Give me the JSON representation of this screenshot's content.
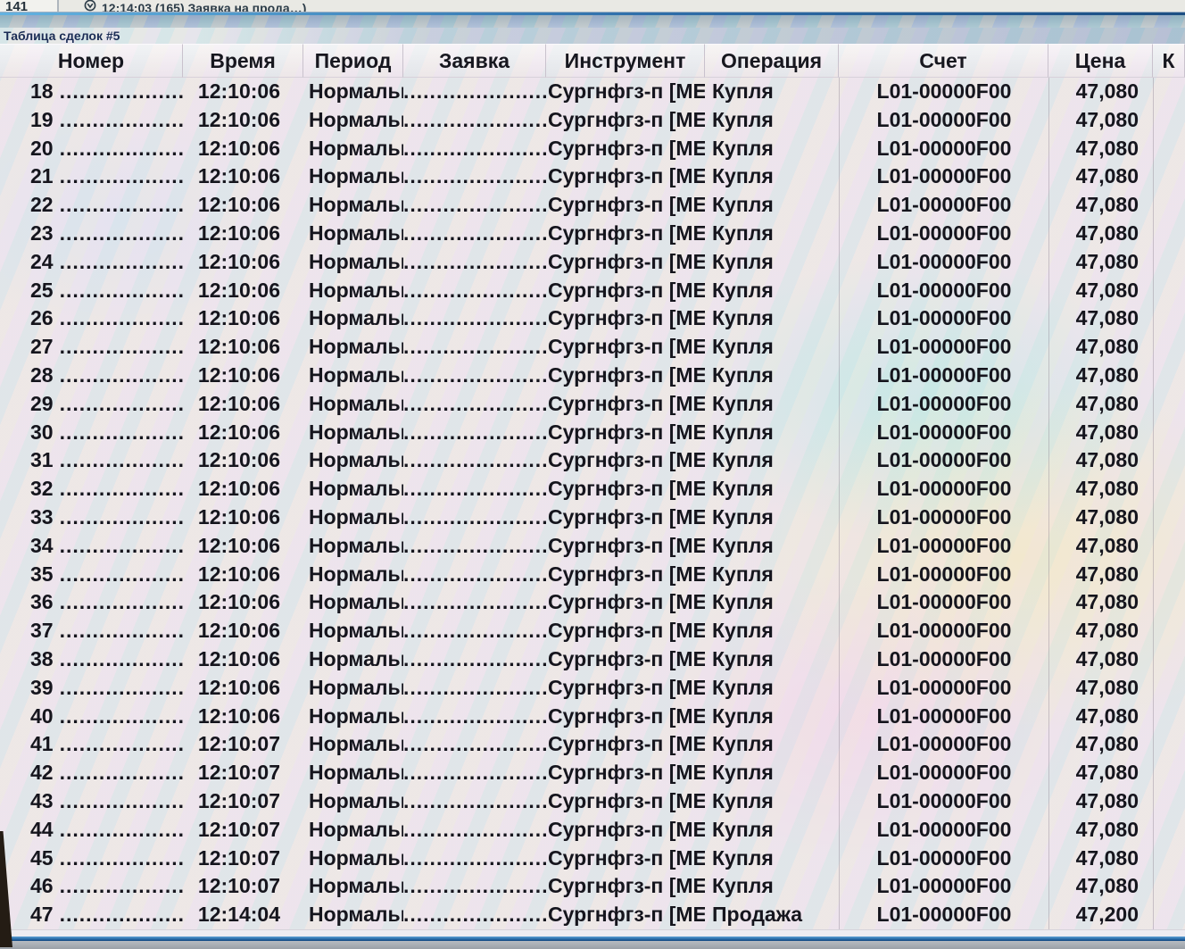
{
  "top_bar": {
    "left_label": "141",
    "icon": "notification-balloon-icon",
    "message": "12:14:03 (165) Заявка на прода…)"
  },
  "window": {
    "title": "Таблица сделок #5"
  },
  "table": {
    "columns": [
      {
        "key": "num",
        "label": "Номер"
      },
      {
        "key": "time",
        "label": "Время"
      },
      {
        "key": "period",
        "label": "Период"
      },
      {
        "key": "order",
        "label": "Заявка"
      },
      {
        "key": "instr",
        "label": "Инструмент"
      },
      {
        "key": "oper",
        "label": "Операция"
      },
      {
        "key": "acct",
        "label": "Счет"
      },
      {
        "key": "price",
        "label": "Цена"
      },
      {
        "key": "qty",
        "label": "К"
      }
    ],
    "leader_dots": "............................................................",
    "rows": [
      {
        "n": "18",
        "time": "12:10:06",
        "period": "Нормальн",
        "instr": "Сургнфгз-п [МЕ",
        "oper": "Купля",
        "acct": "L01-00000F00",
        "price": "47,080"
      },
      {
        "n": "19",
        "time": "12:10:06",
        "period": "Нормальн",
        "instr": "Сургнфгз-п [МЕ",
        "oper": "Купля",
        "acct": "L01-00000F00",
        "price": "47,080"
      },
      {
        "n": "20",
        "time": "12:10:06",
        "period": "Нормальн",
        "instr": "Сургнфгз-п [МЕ",
        "oper": "Купля",
        "acct": "L01-00000F00",
        "price": "47,080"
      },
      {
        "n": "21",
        "time": "12:10:06",
        "period": "Нормальн",
        "instr": "Сургнфгз-п [МЕ",
        "oper": "Купля",
        "acct": "L01-00000F00",
        "price": "47,080"
      },
      {
        "n": "22",
        "time": "12:10:06",
        "period": "Нормальн",
        "instr": "Сургнфгз-п [МЕ",
        "oper": "Купля",
        "acct": "L01-00000F00",
        "price": "47,080"
      },
      {
        "n": "23",
        "time": "12:10:06",
        "period": "Нормальн",
        "instr": "Сургнфгз-п [МЕ",
        "oper": "Купля",
        "acct": "L01-00000F00",
        "price": "47,080"
      },
      {
        "n": "24",
        "time": "12:10:06",
        "period": "Нормальн",
        "instr": "Сургнфгз-п [МЕ",
        "oper": "Купля",
        "acct": "L01-00000F00",
        "price": "47,080"
      },
      {
        "n": "25",
        "time": "12:10:06",
        "period": "Нормальн",
        "instr": "Сургнфгз-п [МЕ",
        "oper": "Купля",
        "acct": "L01-00000F00",
        "price": "47,080"
      },
      {
        "n": "26",
        "time": "12:10:06",
        "period": "Нормальн",
        "instr": "Сургнфгз-п [МЕ",
        "oper": "Купля",
        "acct": "L01-00000F00",
        "price": "47,080"
      },
      {
        "n": "27",
        "time": "12:10:06",
        "period": "Нормальн",
        "instr": "Сургнфгз-п [МЕ",
        "oper": "Купля",
        "acct": "L01-00000F00",
        "price": "47,080"
      },
      {
        "n": "28",
        "time": "12:10:06",
        "period": "Нормальн",
        "instr": "Сургнфгз-п [МЕ",
        "oper": "Купля",
        "acct": "L01-00000F00",
        "price": "47,080"
      },
      {
        "n": "29",
        "time": "12:10:06",
        "period": "Нормальн",
        "instr": "Сургнфгз-п [МЕ",
        "oper": "Купля",
        "acct": "L01-00000F00",
        "price": "47,080"
      },
      {
        "n": "30",
        "time": "12:10:06",
        "period": "Нормальн",
        "instr": "Сургнфгз-п [МЕ",
        "oper": "Купля",
        "acct": "L01-00000F00",
        "price": "47,080"
      },
      {
        "n": "31",
        "time": "12:10:06",
        "period": "Нормальн",
        "instr": "Сургнфгз-п [МЕ",
        "oper": "Купля",
        "acct": "L01-00000F00",
        "price": "47,080"
      },
      {
        "n": "32",
        "time": "12:10:06",
        "period": "Нормальн",
        "instr": "Сургнфгз-п [МЕ",
        "oper": "Купля",
        "acct": "L01-00000F00",
        "price": "47,080"
      },
      {
        "n": "33",
        "time": "12:10:06",
        "period": "Нормальн",
        "instr": "Сургнфгз-п [МЕ",
        "oper": "Купля",
        "acct": "L01-00000F00",
        "price": "47,080"
      },
      {
        "n": "34",
        "time": "12:10:06",
        "period": "Нормальн",
        "instr": "Сургнфгз-п [МЕ",
        "oper": "Купля",
        "acct": "L01-00000F00",
        "price": "47,080"
      },
      {
        "n": "35",
        "time": "12:10:06",
        "period": "Нормальн",
        "instr": "Сургнфгз-п [МЕ",
        "oper": "Купля",
        "acct": "L01-00000F00",
        "price": "47,080"
      },
      {
        "n": "36",
        "time": "12:10:06",
        "period": "Нормальн",
        "instr": "Сургнфгз-п [МЕ",
        "oper": "Купля",
        "acct": "L01-00000F00",
        "price": "47,080"
      },
      {
        "n": "37",
        "time": "12:10:06",
        "period": "Нормальн",
        "instr": "Сургнфгз-п [МЕ",
        "oper": "Купля",
        "acct": "L01-00000F00",
        "price": "47,080"
      },
      {
        "n": "38",
        "time": "12:10:06",
        "period": "Нормальн",
        "instr": "Сургнфгз-п [МЕ",
        "oper": "Купля",
        "acct": "L01-00000F00",
        "price": "47,080"
      },
      {
        "n": "39",
        "time": "12:10:06",
        "period": "Нормальн",
        "instr": "Сургнфгз-п [МЕ",
        "oper": "Купля",
        "acct": "L01-00000F00",
        "price": "47,080"
      },
      {
        "n": "40",
        "time": "12:10:06",
        "period": "Нормальн",
        "instr": "Сургнфгз-п [МЕ",
        "oper": "Купля",
        "acct": "L01-00000F00",
        "price": "47,080"
      },
      {
        "n": "41",
        "time": "12:10:07",
        "period": "Нормальн",
        "instr": "Сургнфгз-п [МЕ",
        "oper": "Купля",
        "acct": "L01-00000F00",
        "price": "47,080"
      },
      {
        "n": "42",
        "time": "12:10:07",
        "period": "Нормальн",
        "instr": "Сургнфгз-п [МЕ",
        "oper": "Купля",
        "acct": "L01-00000F00",
        "price": "47,080"
      },
      {
        "n": "43",
        "time": "12:10:07",
        "period": "Нормальн",
        "instr": "Сургнфгз-п [МЕ",
        "oper": "Купля",
        "acct": "L01-00000F00",
        "price": "47,080"
      },
      {
        "n": "44",
        "time": "12:10:07",
        "period": "Нормальн",
        "instr": "Сургнфгз-п [МЕ",
        "oper": "Купля",
        "acct": "L01-00000F00",
        "price": "47,080"
      },
      {
        "n": "45",
        "time": "12:10:07",
        "period": "Нормальн",
        "instr": "Сургнфгз-п [МЕ",
        "oper": "Купля",
        "acct": "L01-00000F00",
        "price": "47,080"
      },
      {
        "n": "46",
        "time": "12:10:07",
        "period": "Нормальн",
        "instr": "Сургнфгз-п [МЕ",
        "oper": "Купля",
        "acct": "L01-00000F00",
        "price": "47,080"
      },
      {
        "n": "47",
        "time": "12:14:04",
        "period": "Нормальн",
        "instr": "Сургнфгз-п [МЕ",
        "oper": "Продажа",
        "acct": "L01-00000F00",
        "price": "47,200"
      }
    ]
  },
  "colors": {
    "accent_blue": "#2f6ea9",
    "body_text": "#15151d",
    "caption_text": "#1b2c55",
    "moire_base": "#ece6ed"
  }
}
